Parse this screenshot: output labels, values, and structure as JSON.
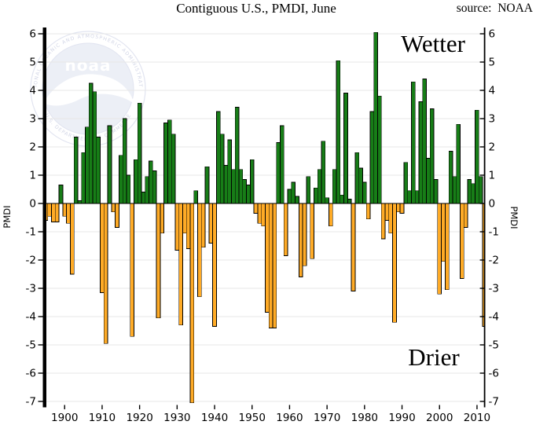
{
  "header": {
    "title": "Contiguous U.S., PMDI, June",
    "source_label": "source:  NOAA"
  },
  "annotations": {
    "wetter": "Wetter",
    "drier": "Drier"
  },
  "watermark": {
    "wordmark": "noaa",
    "ring_text_top": "NATIONAL OCEANIC AND ATMOSPHERIC ADMINISTRATION",
    "ring_text_bottom": "U.S. DEPARTMENT OF COMMERCE"
  },
  "y_axis": {
    "label_left": "PMDI",
    "label_right": "PMDI",
    "ticks": [
      6,
      5,
      4,
      3,
      2,
      1,
      0,
      -1,
      -2,
      -3,
      -4,
      -5,
      -6,
      -7
    ]
  },
  "x_axis": {
    "ticks": [
      1900,
      1910,
      1920,
      1930,
      1940,
      1950,
      1960,
      1970,
      1980,
      1990,
      2000,
      2010
    ]
  },
  "chart_data": {
    "type": "bar",
    "title": "Contiguous U.S., PMDI, June",
    "ylabel": "PMDI",
    "ylim": [
      -7.3,
      6.3
    ],
    "grid": true,
    "year_start": 1895,
    "year_end": 2012,
    "positive_color": "#177D17",
    "negative_color": "#FFAB26",
    "positive_meaning": "Wetter",
    "negative_meaning": "Drier",
    "values": [
      -0.6,
      -0.45,
      -0.65,
      -0.65,
      0.65,
      -0.45,
      -0.7,
      -2.5,
      2.35,
      0.1,
      1.8,
      2.7,
      4.25,
      3.95,
      2.35,
      -3.15,
      -4.95,
      2.75,
      -0.3,
      -0.85,
      1.7,
      3.0,
      1.0,
      -4.7,
      1.55,
      3.55,
      0.4,
      0.95,
      1.5,
      1.15,
      -4.05,
      -1.05,
      2.85,
      2.95,
      2.45,
      -1.65,
      -4.3,
      -1.05,
      -1.6,
      -7.05,
      0.45,
      -3.3,
      -1.55,
      1.3,
      -1.4,
      -4.35,
      3.25,
      2.45,
      1.35,
      2.25,
      1.2,
      3.4,
      1.2,
      0.85,
      0.65,
      1.55,
      -0.35,
      -0.7,
      -0.8,
      -3.85,
      -4.4,
      -4.4,
      2.15,
      2.75,
      -1.85,
      0.5,
      0.75,
      0.25,
      -2.6,
      -2.2,
      0.95,
      -1.95,
      0.55,
      1.2,
      2.2,
      0.2,
      -0.8,
      1.2,
      5.05,
      0.3,
      3.9,
      0.15,
      -3.1,
      1.8,
      1.25,
      0.75,
      -0.55,
      3.25,
      6.05,
      3.8,
      -1.25,
      -0.6,
      -1.05,
      -4.2,
      -0.3,
      -0.35,
      1.45,
      0.45,
      4.3,
      0.45,
      3.6,
      4.4,
      1.6,
      3.35,
      0.85,
      -3.2,
      -2.05,
      -3.05,
      1.85,
      0.95,
      2.8,
      -2.65,
      -0.85,
      0.85,
      0.7,
      3.3,
      0.95,
      -4.35
    ]
  }
}
